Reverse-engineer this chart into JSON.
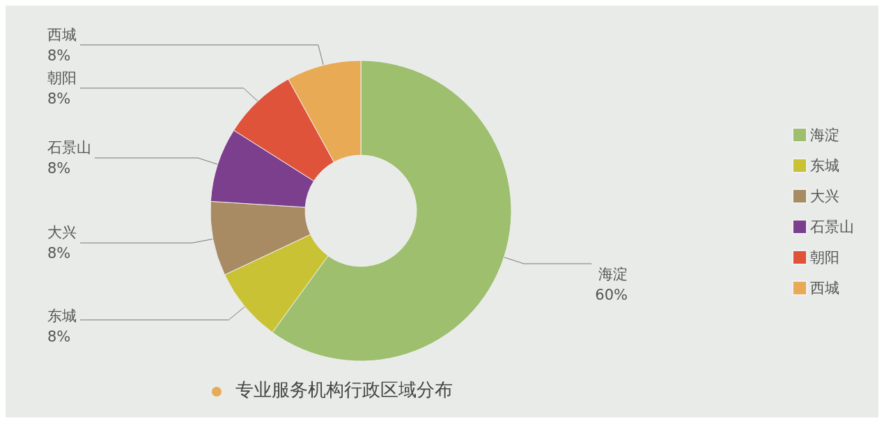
{
  "chart_data": {
    "type": "donut",
    "title": "专业服务机构行政区域分布",
    "categories": [
      "海淀",
      "东城",
      "大兴",
      "石景山",
      "朝阳",
      "西城"
    ],
    "values": [
      60,
      8,
      8,
      8,
      8,
      8
    ],
    "value_labels": [
      "60%",
      "8%",
      "8%",
      "8%",
      "8%",
      "8%"
    ],
    "colors": [
      "#9dbf6e",
      "#c9c234",
      "#a88a63",
      "#7b3f8e",
      "#e0533b",
      "#e8aa55"
    ],
    "legend": "right"
  }
}
